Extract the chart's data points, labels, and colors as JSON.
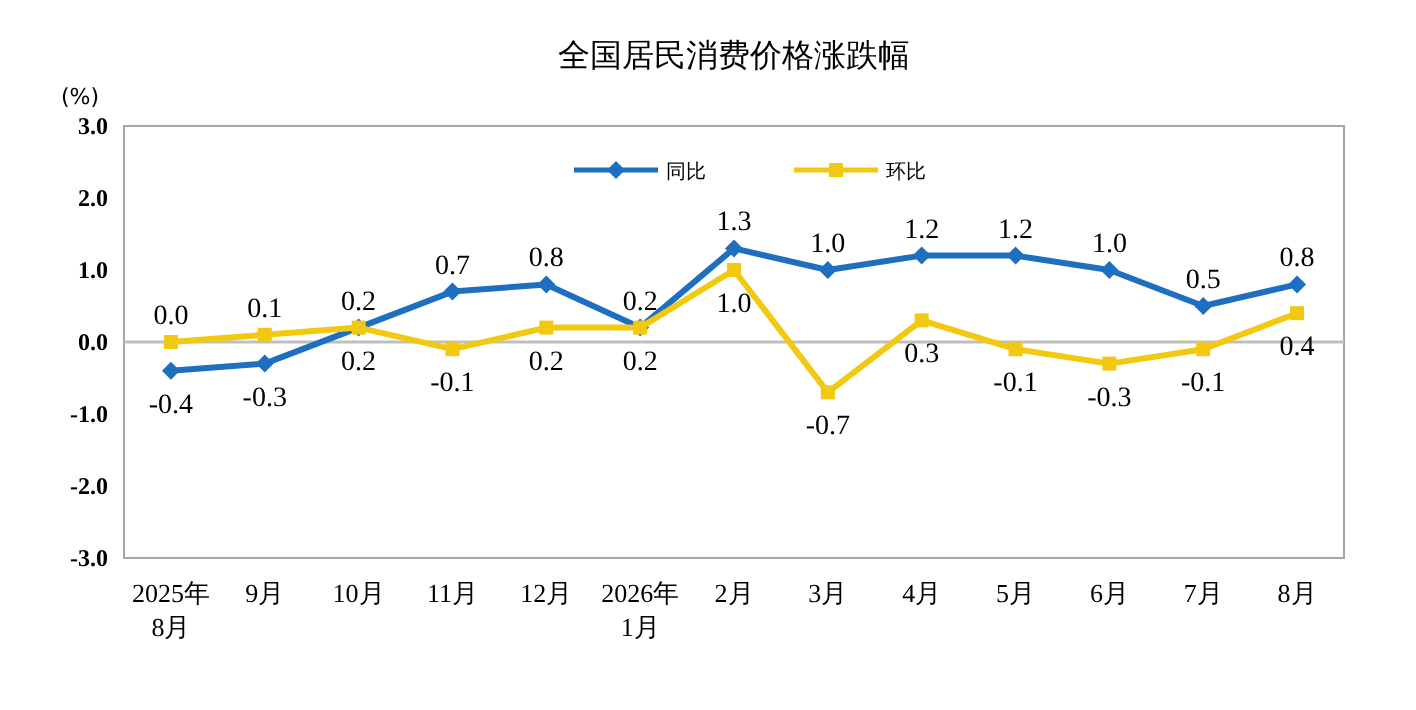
{
  "chart_data": {
    "type": "line",
    "title": "全国居民消费价格涨跌幅",
    "ylabel": "(%)",
    "categories": [
      "2025年\n8月",
      "9月",
      "10月",
      "11月",
      "12月",
      "2026年\n1月",
      "2月",
      "3月",
      "4月",
      "5月",
      "6月",
      "7月",
      "8月"
    ],
    "series": [
      {
        "name": "同比",
        "color": "#1f6fc0",
        "marker": "diamond",
        "values": [
          -0.4,
          -0.3,
          0.2,
          0.7,
          0.8,
          0.2,
          1.3,
          1.0,
          1.2,
          1.2,
          1.0,
          0.5,
          0.8
        ],
        "value_labels": [
          "-0.4",
          "-0.3",
          "0.2",
          "0.7",
          "0.8",
          "0.2",
          "1.3",
          "1.0",
          "1.2",
          "1.2",
          "1.0",
          "0.5",
          "0.8"
        ]
      },
      {
        "name": "环比",
        "color": "#f2c811",
        "marker": "square",
        "values": [
          0.0,
          0.1,
          0.2,
          -0.1,
          0.2,
          0.2,
          1.0,
          -0.7,
          0.3,
          -0.1,
          -0.3,
          -0.1,
          0.4
        ],
        "value_labels": [
          "0.0",
          "0.1",
          "0.2",
          "-0.1",
          "0.2",
          "0.2",
          "1.0",
          "-0.7",
          "0.3",
          "-0.1",
          "-0.3",
          "-0.1",
          "0.4"
        ]
      }
    ],
    "ylim": [
      -3,
      3
    ],
    "yticks": [
      {
        "value": -3,
        "label": "-3.0"
      },
      {
        "value": -2,
        "label": "-2.0"
      },
      {
        "value": -1,
        "label": "-1.0"
      },
      {
        "value": 0,
        "label": "0.0"
      },
      {
        "value": 1,
        "label": "1.0"
      },
      {
        "value": 2,
        "label": "2.0"
      },
      {
        "value": 3,
        "label": "3.0"
      }
    ],
    "ref_lines": [
      {
        "axis": "y",
        "value": 0,
        "color": "#bfbfbf"
      }
    ],
    "grid": false,
    "legend": "top",
    "line_style": "solid"
  }
}
